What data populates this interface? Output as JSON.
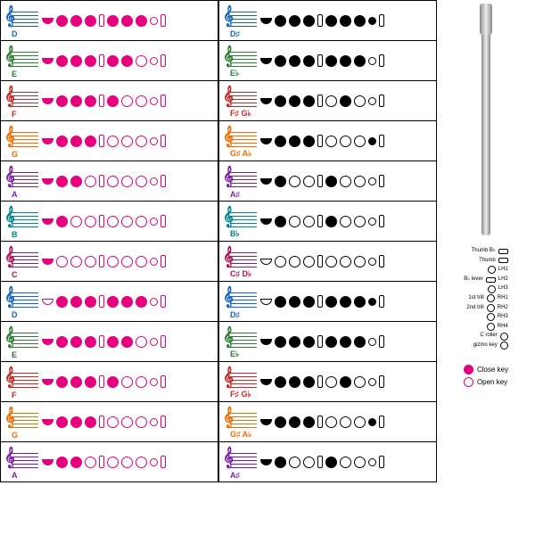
{
  "colors": {
    "magenta": "#e6007e",
    "black": "#000000"
  },
  "notes": [
    {
      "n": "D",
      "c": "#1565c0",
      "f": [
        1,
        1,
        1,
        1,
        1,
        1,
        1,
        0,
        0
      ]
    },
    {
      "n": "E",
      "c": "#2e7d32",
      "f": [
        1,
        1,
        1,
        1,
        1,
        1,
        0,
        0,
        0
      ]
    },
    {
      "n": "F",
      "c": "#c62828",
      "f": [
        1,
        1,
        1,
        1,
        1,
        0,
        0,
        0,
        0
      ]
    },
    {
      "n": "G",
      "c": "#ef6c00",
      "f": [
        1,
        1,
        1,
        1,
        0,
        0,
        0,
        0,
        0
      ]
    },
    {
      "n": "A",
      "c": "#7b1fa2",
      "f": [
        1,
        1,
        1,
        0,
        0,
        0,
        0,
        0,
        0
      ]
    },
    {
      "n": "B",
      "c": "#00838f",
      "f": [
        1,
        1,
        0,
        0,
        0,
        0,
        0,
        0,
        0
      ]
    },
    {
      "n": "C",
      "c": "#ad1457",
      "f": [
        1,
        0,
        0,
        0,
        0,
        0,
        0,
        0,
        0
      ]
    },
    {
      "n": "D",
      "c": "#1565c0",
      "f": [
        0,
        1,
        1,
        1,
        1,
        1,
        1,
        0,
        0
      ]
    },
    {
      "n": "E",
      "c": "#2e7d32",
      "f": [
        1,
        1,
        1,
        1,
        1,
        1,
        0,
        0,
        0
      ]
    },
    {
      "n": "F",
      "c": "#c62828",
      "f": [
        1,
        1,
        1,
        1,
        1,
        0,
        0,
        0,
        0
      ]
    },
    {
      "n": "G",
      "c": "#ef6c00",
      "f": [
        1,
        1,
        1,
        1,
        0,
        0,
        0,
        0,
        0
      ]
    },
    {
      "n": "A",
      "c": "#7b1fa2",
      "f": [
        1,
        1,
        1,
        0,
        0,
        0,
        0,
        0,
        0
      ]
    }
  ],
  "sharps": [
    {
      "n": "D♯",
      "c": "#1565c0",
      "f": [
        1,
        1,
        1,
        1,
        1,
        1,
        1,
        1,
        0
      ]
    },
    {
      "n": "E♭",
      "c": "#2e7d32",
      "f": [
        1,
        1,
        1,
        1,
        1,
        1,
        1,
        0,
        0
      ]
    },
    {
      "n": "F♯ G♭",
      "c": "#c62828",
      "f": [
        1,
        1,
        1,
        1,
        0,
        1,
        0,
        0,
        0
      ]
    },
    {
      "n": "G♯ A♭",
      "c": "#ef6c00",
      "f": [
        1,
        1,
        1,
        1,
        0,
        0,
        0,
        1,
        0
      ]
    },
    {
      "n": "A♯",
      "c": "#7b1fa2",
      "f": [
        1,
        1,
        0,
        0,
        1,
        0,
        0,
        0,
        0
      ]
    },
    {
      "n": "B♭",
      "c": "#00838f",
      "f": [
        1,
        1,
        0,
        0,
        1,
        0,
        0,
        0,
        0
      ]
    },
    {
      "n": "C♯ D♭",
      "c": "#ad1457",
      "f": [
        0,
        0,
        0,
        0,
        0,
        0,
        0,
        0,
        0
      ]
    },
    {
      "n": "D♯",
      "c": "#1565c0",
      "f": [
        0,
        1,
        1,
        1,
        1,
        1,
        1,
        1,
        0
      ]
    },
    {
      "n": "E♭",
      "c": "#2e7d32",
      "f": [
        1,
        1,
        1,
        1,
        1,
        1,
        1,
        0,
        0
      ]
    },
    {
      "n": "F♯ G♭",
      "c": "#c62828",
      "f": [
        1,
        1,
        1,
        1,
        0,
        1,
        0,
        0,
        0
      ]
    },
    {
      "n": "G♯ A♭",
      "c": "#ef6c00",
      "f": [
        1,
        1,
        1,
        1,
        0,
        0,
        0,
        1,
        0
      ]
    },
    {
      "n": "A♯",
      "c": "#7b1fa2",
      "f": [
        1,
        1,
        0,
        0,
        1,
        0,
        0,
        0,
        0
      ]
    }
  ],
  "keyDiagram": [
    "Thumb B♭",
    "Thumb",
    "LH1",
    "LH2",
    "LH3",
    "B♭ lever",
    "LH4",
    "1st trill",
    "RH1",
    "2nd trill",
    "RH2",
    "RH3",
    "RH4",
    "C roller",
    "G♯",
    "B roller",
    "gizmo key"
  ],
  "legend": {
    "close": "Close key",
    "open": "Open key"
  }
}
